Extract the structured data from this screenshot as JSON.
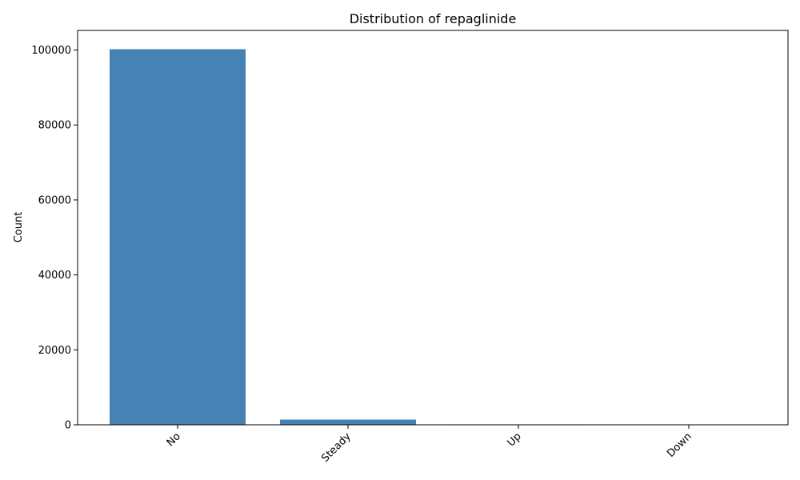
{
  "chart_data": {
    "type": "bar",
    "title": "Distribution of repaglinide",
    "xlabel": "",
    "ylabel": "Count",
    "categories": [
      "No",
      "Steady",
      "Up",
      "Down"
    ],
    "values": [
      100227,
      1384,
      110,
      45
    ],
    "ylim": [
      0,
      105238
    ],
    "yticks": [
      0,
      20000,
      40000,
      60000,
      80000,
      100000
    ],
    "ytick_labels": [
      "0",
      "20000",
      "40000",
      "60000",
      "80000",
      "100000"
    ],
    "grid": false,
    "legend": "none",
    "bar_color": "#4682b4"
  }
}
